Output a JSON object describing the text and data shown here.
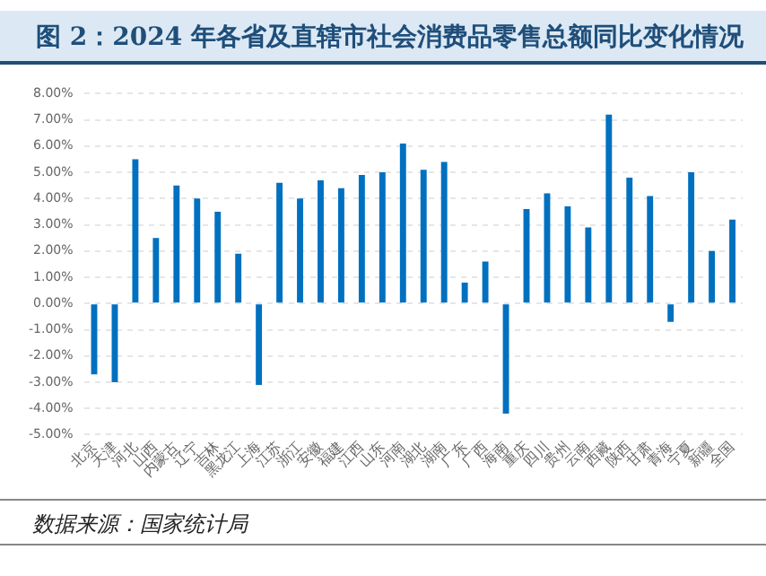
{
  "chart_data": {
    "type": "bar",
    "title": "图 2：2024 年各省及直辖市社会消费品零售总额同比变化情况",
    "categories": [
      "北京",
      "天津",
      "河北",
      "山西",
      "内蒙古",
      "辽宁",
      "吉林",
      "黑龙江",
      "上海",
      "江苏",
      "浙江",
      "安徽",
      "福建",
      "江西",
      "山东",
      "河南",
      "湖北",
      "湖南",
      "广东",
      "广西",
      "海南",
      "重庆",
      "四川",
      "贵州",
      "云南",
      "西藏",
      "陕西",
      "甘肃",
      "青海",
      "宁夏",
      "新疆",
      "全国"
    ],
    "values": [
      -2.7,
      -3.0,
      5.5,
      2.5,
      4.5,
      4.0,
      3.5,
      1.9,
      -3.1,
      4.6,
      4.0,
      4.7,
      4.4,
      4.9,
      5.0,
      6.1,
      5.1,
      5.4,
      0.8,
      1.6,
      -4.2,
      3.6,
      4.2,
      3.7,
      2.9,
      7.2,
      4.8,
      4.1,
      -0.7,
      5.0,
      2.0,
      3.2
    ],
    "color": "#0070c0",
    "ylim": [
      -5,
      8
    ],
    "yticks": [
      {
        "value": -5,
        "label": "-5.00%"
      },
      {
        "value": -4,
        "label": "-4.00%"
      },
      {
        "value": -3,
        "label": "-3.00%"
      },
      {
        "value": -2,
        "label": "-2.00%"
      },
      {
        "value": -1,
        "label": "-1.00%"
      },
      {
        "value": 0,
        "label": "0.00%"
      },
      {
        "value": 1,
        "label": "1.00%"
      },
      {
        "value": 2,
        "label": "2.00%"
      },
      {
        "value": 3,
        "label": "3.00%"
      },
      {
        "value": 4,
        "label": "4.00%"
      },
      {
        "value": 5,
        "label": "5.00%"
      },
      {
        "value": 6,
        "label": "6.00%"
      },
      {
        "value": 7,
        "label": "7.00%"
      },
      {
        "value": 8,
        "label": "8.00%"
      }
    ],
    "grid": "y",
    "annotations": [
      "数据来源：国家统计局"
    ]
  }
}
